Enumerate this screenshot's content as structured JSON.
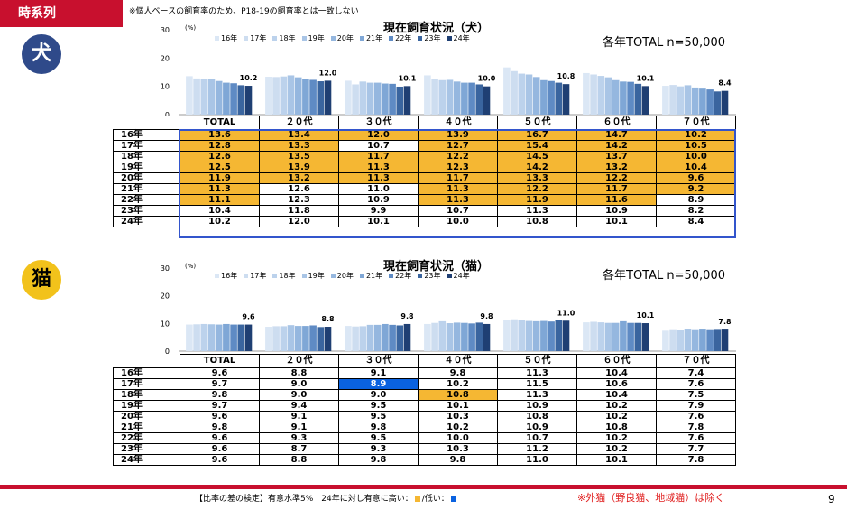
{
  "section_tag": "時系列",
  "top_note": "※個人ベースの飼育率のため、P18-19の飼育率とは一致しない",
  "footer": {
    "note_prefix": "【比率の差の検定】有意水準5%　24年に対し有意に高い：",
    "note_mid": "/低い：",
    "red_note": "※外猫（野良猫、地域猫）は除く",
    "page_number": "9"
  },
  "colors": {
    "brand_red": "#c8102e",
    "high": "#f5b733",
    "low": "#0a62e0",
    "series": [
      "#dbe7f5",
      "#cdddf0",
      "#bcd2ec",
      "#a9c5e6",
      "#95b7df",
      "#7fa7d6",
      "#5f8bc4",
      "#3a659f",
      "#1f3f73"
    ]
  },
  "panels": [
    {
      "id": "dog",
      "badge": "犬",
      "title": "現在飼育状況（犬）",
      "n_label": "各年TOTAL n=50,000",
      "unit": "(%)",
      "years": [
        "16年",
        "17年",
        "18年",
        "19年",
        "20年",
        "21年",
        "22年",
        "23年",
        "24年"
      ],
      "categories": [
        "TOTAL",
        "２０代",
        "３０代",
        "４０代",
        "５０代",
        "６０代",
        "７０代"
      ],
      "values": [
        [
          13.6,
          13.4,
          12.0,
          13.9,
          16.7,
          14.7,
          10.2
        ],
        [
          12.8,
          13.3,
          10.7,
          12.7,
          15.4,
          14.2,
          10.5
        ],
        [
          12.6,
          13.5,
          11.7,
          12.2,
          14.5,
          13.7,
          10.0
        ],
        [
          12.5,
          13.9,
          11.3,
          12.3,
          14.2,
          13.2,
          10.4
        ],
        [
          11.9,
          13.2,
          11.3,
          11.7,
          13.3,
          12.2,
          9.6
        ],
        [
          11.3,
          12.6,
          11.0,
          11.3,
          12.2,
          11.7,
          9.2
        ],
        [
          11.1,
          12.3,
          10.9,
          11.3,
          11.9,
          11.6,
          8.9
        ],
        [
          10.4,
          11.8,
          9.9,
          10.7,
          11.3,
          10.9,
          8.2
        ],
        [
          10.2,
          12.0,
          10.1,
          10.0,
          10.8,
          10.1,
          8.4
        ]
      ],
      "value_labels": [
        [
          "13.6",
          "13.4",
          "12.0",
          "13.9",
          "16.7",
          "14.7",
          "10.2"
        ],
        [
          "12.8",
          "13.3",
          "10.7",
          "12.7",
          "15.4",
          "14.2",
          "10.5"
        ],
        [
          "12.6",
          "13.5",
          "11.7",
          "12.2",
          "14.5",
          "13.7",
          "10.0"
        ],
        [
          "12.5",
          "13.9",
          "11.3",
          "12.3",
          "14.2",
          "13.2",
          "10.4"
        ],
        [
          "11.9",
          "13.2",
          "11.3",
          "11.7",
          "13.3",
          "12.2",
          "9.6"
        ],
        [
          "11.3",
          "12.6",
          "11.0",
          "11.3",
          "12.2",
          "11.7",
          "9.2"
        ],
        [
          "11.1",
          "12.3",
          "10.9",
          "11.3",
          "11.9",
          "11.6",
          "8.9"
        ],
        [
          "10.4",
          "11.8",
          "9.9",
          "10.7",
          "11.3",
          "10.9",
          "8.2"
        ],
        [
          "10.2",
          "12.0",
          "10.1",
          "10.0",
          "10.8",
          "10.1",
          "8.4"
        ]
      ],
      "significance": [
        [
          "H",
          "H",
          "H",
          "H",
          "H",
          "H",
          "H"
        ],
        [
          "H",
          "H",
          "",
          "H",
          "H",
          "H",
          "H"
        ],
        [
          "H",
          "H",
          "H",
          "H",
          "H",
          "H",
          "H"
        ],
        [
          "H",
          "H",
          "H",
          "H",
          "H",
          "H",
          "H"
        ],
        [
          "H",
          "H",
          "H",
          "H",
          "H",
          "H",
          "H"
        ],
        [
          "H",
          "",
          "",
          "H",
          "H",
          "H",
          "H"
        ],
        [
          "H",
          "",
          "",
          "H",
          "H",
          "H",
          ""
        ],
        [
          "",
          "",
          "",
          "",
          "",
          "",
          ""
        ],
        [
          "",
          "",
          "",
          "",
          "",
          "",
          ""
        ]
      ],
      "top_labels": [
        "10.2",
        "12.0",
        "10.1",
        "10.0",
        "10.8",
        "10.1",
        "8.4"
      ],
      "ylim": [
        0,
        30
      ],
      "yticks": [
        "0",
        "10",
        "20",
        "30"
      ]
    },
    {
      "id": "cat",
      "badge": "猫",
      "title": "現在飼育状況（猫）",
      "n_label": "各年TOTAL n=50,000",
      "unit": "(%)",
      "years": [
        "16年",
        "17年",
        "18年",
        "19年",
        "20年",
        "21年",
        "22年",
        "23年",
        "24年"
      ],
      "categories": [
        "TOTAL",
        "２０代",
        "３０代",
        "４０代",
        "５０代",
        "６０代",
        "７０代"
      ],
      "values": [
        [
          9.6,
          8.8,
          9.1,
          9.8,
          11.3,
          10.4,
          7.4
        ],
        [
          9.7,
          9.0,
          8.9,
          10.2,
          11.5,
          10.6,
          7.6
        ],
        [
          9.8,
          9.0,
          9.0,
          10.8,
          11.3,
          10.4,
          7.5
        ],
        [
          9.7,
          9.4,
          9.5,
          10.1,
          10.9,
          10.2,
          7.9
        ],
        [
          9.6,
          9.1,
          9.5,
          10.3,
          10.8,
          10.2,
          7.6
        ],
        [
          9.8,
          9.1,
          9.8,
          10.2,
          10.9,
          10.8,
          7.8
        ],
        [
          9.6,
          9.3,
          9.5,
          10.0,
          10.7,
          10.2,
          7.6
        ],
        [
          9.6,
          8.7,
          9.3,
          10.3,
          11.2,
          10.2,
          7.7
        ],
        [
          9.6,
          8.8,
          9.8,
          9.8,
          11.0,
          10.1,
          7.8
        ]
      ],
      "value_labels": [
        [
          "9.6",
          "8.8",
          "9.1",
          "9.8",
          "11.3",
          "10.4",
          "7.4"
        ],
        [
          "9.7",
          "9.0",
          "8.9",
          "10.2",
          "11.5",
          "10.6",
          "7.6"
        ],
        [
          "9.8",
          "9.0",
          "9.0",
          "10.8",
          "11.3",
          "10.4",
          "7.5"
        ],
        [
          "9.7",
          "9.4",
          "9.5",
          "10.1",
          "10.9",
          "10.2",
          "7.9"
        ],
        [
          "9.6",
          "9.1",
          "9.5",
          "10.3",
          "10.8",
          "10.2",
          "7.6"
        ],
        [
          "9.8",
          "9.1",
          "9.8",
          "10.2",
          "10.9",
          "10.8",
          "7.8"
        ],
        [
          "9.6",
          "9.3",
          "9.5",
          "10.0",
          "10.7",
          "10.2",
          "7.6"
        ],
        [
          "9.6",
          "8.7",
          "9.3",
          "10.3",
          "11.2",
          "10.2",
          "7.7"
        ],
        [
          "9.6",
          "8.8",
          "9.8",
          "9.8",
          "11.0",
          "10.1",
          "7.8"
        ]
      ],
      "significance": [
        [
          "",
          "",
          "",
          "",
          "",
          "",
          ""
        ],
        [
          "",
          "",
          "L",
          "",
          "",
          "",
          ""
        ],
        [
          "",
          "",
          "",
          "H",
          "",
          "",
          ""
        ],
        [
          "",
          "",
          "",
          "",
          "",
          "",
          ""
        ],
        [
          "",
          "",
          "",
          "",
          "",
          "",
          ""
        ],
        [
          "",
          "",
          "",
          "",
          "",
          "",
          ""
        ],
        [
          "",
          "",
          "",
          "",
          "",
          "",
          ""
        ],
        [
          "",
          "",
          "",
          "",
          "",
          "",
          ""
        ],
        [
          "",
          "",
          "",
          "",
          "",
          "",
          ""
        ]
      ],
      "top_labels": [
        "9.6",
        "8.8",
        "9.8",
        "9.8",
        "11.0",
        "10.1",
        "7.8"
      ],
      "ylim": [
        0,
        30
      ],
      "yticks": [
        "0",
        "10",
        "20",
        "30"
      ]
    }
  ],
  "chart_data": [
    {
      "type": "bar",
      "title": "現在飼育状況（犬）",
      "ylabel": "(%)",
      "ylim": [
        0,
        30
      ],
      "categories": [
        "TOTAL",
        "２０代",
        "３０代",
        "４０代",
        "５０代",
        "６０代",
        "７０代"
      ],
      "legend": "top",
      "series": [
        {
          "name": "16年",
          "values": [
            13.6,
            13.4,
            12.0,
            13.9,
            16.7,
            14.7,
            10.2
          ]
        },
        {
          "name": "17年",
          "values": [
            12.8,
            13.3,
            10.7,
            12.7,
            15.4,
            14.2,
            10.5
          ]
        },
        {
          "name": "18年",
          "values": [
            12.6,
            13.5,
            11.7,
            12.2,
            14.5,
            13.7,
            10.0
          ]
        },
        {
          "name": "19年",
          "values": [
            12.5,
            13.9,
            11.3,
            12.3,
            14.2,
            13.2,
            10.4
          ]
        },
        {
          "name": "20年",
          "values": [
            11.9,
            13.2,
            11.3,
            11.7,
            13.3,
            12.2,
            9.6
          ]
        },
        {
          "name": "21年",
          "values": [
            11.3,
            12.6,
            11.0,
            11.3,
            12.2,
            11.7,
            9.2
          ]
        },
        {
          "name": "22年",
          "values": [
            11.1,
            12.3,
            10.9,
            11.3,
            11.9,
            11.6,
            8.9
          ]
        },
        {
          "name": "23年",
          "values": [
            10.4,
            11.8,
            9.9,
            10.7,
            11.3,
            10.9,
            8.2
          ]
        },
        {
          "name": "24年",
          "values": [
            10.2,
            12.0,
            10.1,
            10.0,
            10.8,
            10.1,
            8.4
          ]
        }
      ]
    },
    {
      "type": "bar",
      "title": "現在飼育状況（猫）",
      "ylabel": "(%)",
      "ylim": [
        0,
        30
      ],
      "categories": [
        "TOTAL",
        "２０代",
        "３０代",
        "４０代",
        "５０代",
        "６０代",
        "７０代"
      ],
      "legend": "top",
      "series": [
        {
          "name": "16年",
          "values": [
            9.6,
            8.8,
            9.1,
            9.8,
            11.3,
            10.4,
            7.4
          ]
        },
        {
          "name": "17年",
          "values": [
            9.7,
            9.0,
            8.9,
            10.2,
            11.5,
            10.6,
            7.6
          ]
        },
        {
          "name": "18年",
          "values": [
            9.8,
            9.0,
            9.0,
            10.8,
            11.3,
            10.4,
            7.5
          ]
        },
        {
          "name": "19年",
          "values": [
            9.7,
            9.4,
            9.5,
            10.1,
            10.9,
            10.2,
            7.9
          ]
        },
        {
          "name": "20年",
          "values": [
            9.6,
            9.1,
            9.5,
            10.3,
            10.8,
            10.2,
            7.6
          ]
        },
        {
          "name": "21年",
          "values": [
            9.8,
            9.1,
            9.8,
            10.2,
            10.9,
            10.8,
            7.8
          ]
        },
        {
          "name": "22年",
          "values": [
            9.6,
            9.3,
            9.5,
            10.0,
            10.7,
            10.2,
            7.6
          ]
        },
        {
          "name": "23年",
          "values": [
            9.6,
            8.7,
            9.3,
            10.3,
            11.2,
            10.2,
            7.7
          ]
        },
        {
          "name": "24年",
          "values": [
            9.6,
            8.8,
            9.8,
            9.8,
            11.0,
            10.1,
            7.8
          ]
        }
      ]
    }
  ]
}
